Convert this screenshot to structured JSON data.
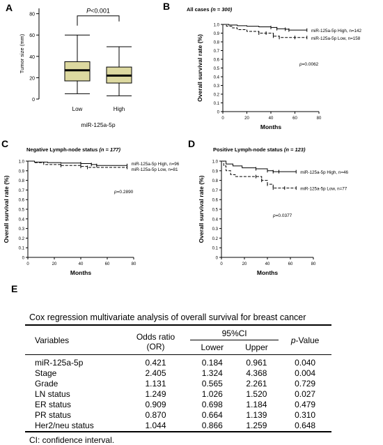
{
  "panels": {
    "A": {
      "label": "A",
      "chart_data": {
        "type": "boxplot",
        "ylabel": "Tumor size (mm)",
        "xlabel": "miR-125a-5p",
        "yticks": [
          "0",
          "20",
          "40",
          "60",
          "80"
        ],
        "ylim": [
          0,
          85
        ],
        "categories": [
          "Low",
          "High"
        ],
        "boxes": [
          {
            "min": 5,
            "q1": 17,
            "median": 27,
            "q3": 35,
            "max": 60
          },
          {
            "min": 3,
            "q1": 15,
            "median": 22,
            "q3": 30,
            "max": 49
          }
        ],
        "annotation": "P<0.001",
        "box_color": "#ddd9a0"
      }
    },
    "B": {
      "label": "B",
      "chart_data": {
        "type": "line",
        "title_main": "All cases",
        "title_n": "(n = 300)",
        "xlabel": "Months",
        "ylabel": "Overall survival rate (%)",
        "xlim": [
          0,
          80
        ],
        "ylim": [
          0,
          1
        ],
        "xticks": [
          "0",
          "20",
          "40",
          "60",
          "80"
        ],
        "yticks": [
          "0",
          "0.1",
          "0.2",
          "0.3",
          "0.4",
          "0.5",
          "0.6",
          "0.7",
          "0.8",
          "0.9",
          "1.0"
        ],
        "series": [
          {
            "name": "miR-125a-5p  High, n=142",
            "style": "solid",
            "x": [
              0,
              5,
              12,
              20,
              30,
              40,
              45,
              52,
              55,
              70
            ],
            "y": [
              1.0,
              0.993,
              0.985,
              0.979,
              0.972,
              0.965,
              0.95,
              0.945,
              0.935,
              0.935
            ]
          },
          {
            "name": "miR-125a-5p  Low, n=158",
            "style": "dashed",
            "x": [
              0,
              3,
              8,
              12,
              20,
              30,
              36,
              42,
              47,
              60,
              70
            ],
            "y": [
              1.0,
              0.98,
              0.96,
              0.94,
              0.92,
              0.9,
              0.9,
              0.865,
              0.85,
              0.85,
              0.85
            ]
          }
        ],
        "annotation": "p=0.0062"
      }
    },
    "C": {
      "label": "C",
      "chart_data": {
        "type": "line",
        "title_main": "Negative Lymph-node status",
        "title_n": "(n = 177)",
        "xlabel": "Months",
        "ylabel": "Overall survival rate (%)",
        "xlim": [
          0,
          80
        ],
        "ylim": [
          0,
          1
        ],
        "xticks": [
          "0",
          "20",
          "40",
          "60",
          "80"
        ],
        "yticks": [
          "0",
          "0.1",
          "0.2",
          "0.3",
          "0.4",
          "0.5",
          "0.6",
          "0.7",
          "0.8",
          "0.9",
          "1.0"
        ],
        "series": [
          {
            "name": "miR-125a-5p  High, n=96",
            "style": "solid",
            "x": [
              0,
              5,
              15,
              25,
              40,
              48,
              52,
              75
            ],
            "y": [
              1.0,
              0.99,
              0.985,
              0.98,
              0.975,
              0.965,
              0.955,
              0.955
            ]
          },
          {
            "name": "miR-125a-5p  Low, n=81",
            "style": "dashed",
            "x": [
              0,
              5,
              12,
              25,
              40,
              45,
              75
            ],
            "y": [
              1.0,
              0.985,
              0.965,
              0.955,
              0.945,
              0.935,
              0.935
            ]
          }
        ],
        "annotation": "p=0.2890"
      }
    },
    "D": {
      "label": "D",
      "chart_data": {
        "type": "line",
        "title_main": "Positive Lymph-node status",
        "title_n": "(n = 123)",
        "xlabel": "Months",
        "ylabel": "Overall survival rate (%)",
        "xlim": [
          0,
          80
        ],
        "ylim": [
          0,
          1
        ],
        "xticks": [
          "0",
          "20",
          "40",
          "60",
          "80"
        ],
        "yticks": [
          "0",
          "0.1",
          "0.2",
          "0.3",
          "0.4",
          "0.5",
          "0.6",
          "0.7",
          "0.8",
          "0.9",
          "1.0"
        ],
        "series": [
          {
            "name": "miR-125a-5p  High, n=46",
            "style": "solid",
            "x": [
              0,
              4,
              10,
              18,
              30,
              40,
              45,
              50,
              65
            ],
            "y": [
              1.0,
              0.97,
              0.95,
              0.93,
              0.92,
              0.9,
              0.89,
              0.89,
              0.89
            ]
          },
          {
            "name": "miR-125a-5p  Low, n=77",
            "style": "dashed",
            "x": [
              0,
              2,
              4,
              8,
              12,
              20,
              30,
              35,
              40,
              45,
              55,
              65
            ],
            "y": [
              1.0,
              0.95,
              0.9,
              0.86,
              0.84,
              0.84,
              0.84,
              0.8,
              0.76,
              0.72,
              0.72,
              0.72
            ]
          }
        ],
        "annotation": "p=0.0377"
      }
    }
  },
  "table_panel": {
    "label": "E",
    "title": "Cox regression multivariate analysis of overall survival for breast cancer",
    "headers": {
      "variables": "Variables",
      "or_line1": "Odds ratio",
      "or_line2": "(OR)",
      "ci": "95%CI",
      "lower": "Lower",
      "upper": "Upper",
      "p_italic": "p",
      "p_rest": "-Value"
    },
    "rows": [
      [
        "miR-125a-5p",
        "0.421",
        "0.184",
        "0.961",
        "0.040"
      ],
      [
        "Stage",
        "2.405",
        "1.324",
        "4.368",
        "0.004"
      ],
      [
        "Grade",
        "1.131",
        "0.565",
        "2.261",
        "0.729"
      ],
      [
        "LN status",
        "1.249",
        "1.026",
        "1.520",
        "0.027"
      ],
      [
        "ER status",
        "0.909",
        "0.698",
        "1.184",
        "0.479"
      ],
      [
        "PR status",
        "0.870",
        "0.664",
        "1.139",
        "0.310"
      ],
      [
        "Her2/neu status",
        "1.044",
        "0.866",
        "1.259",
        "0.648"
      ]
    ],
    "footnote": "CI: confidence interval."
  }
}
